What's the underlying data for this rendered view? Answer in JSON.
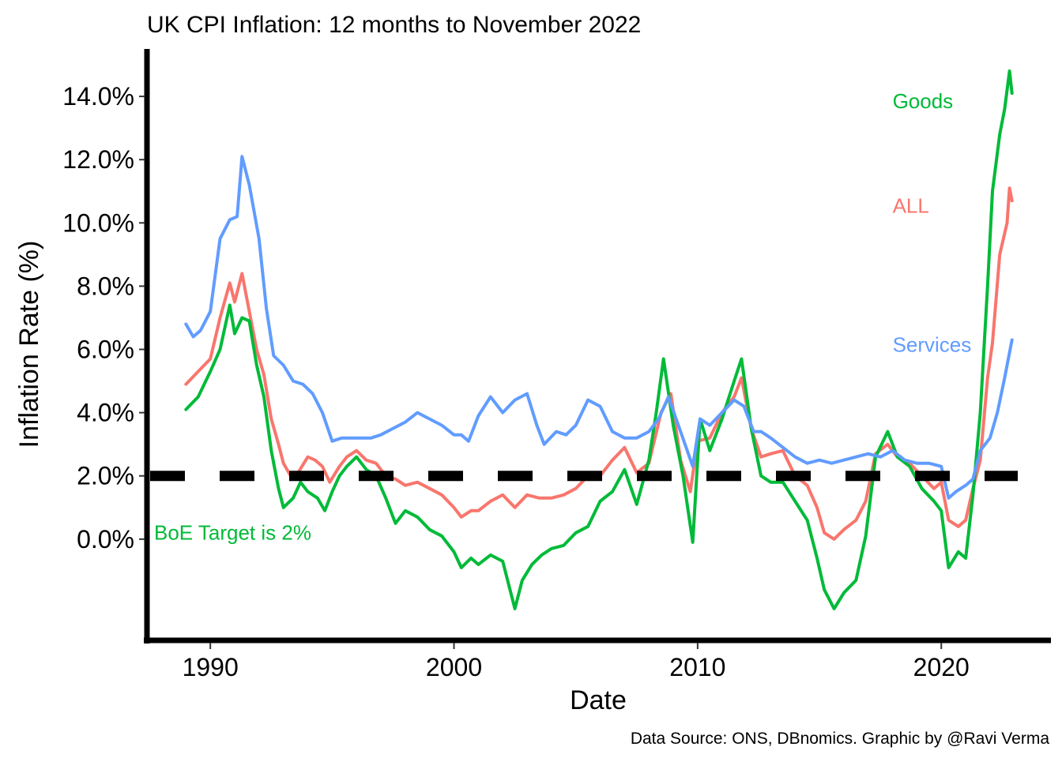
{
  "chart_data": {
    "type": "line",
    "title": "UK CPI Inflation: 12 months to November 2022",
    "xlabel": "Date",
    "ylabel": "Inflation Rate (%)",
    "caption": "Data Source: ONS, DBnomics. Graphic by @Ravi Verma",
    "x_range": [
      1987.4,
      2024.5
    ],
    "y_range": [
      -3.2,
      15.5
    ],
    "x_ticks": [
      {
        "value": 1990,
        "label": "1990"
      },
      {
        "value": 2000,
        "label": "2000"
      },
      {
        "value": 2010,
        "label": "2010"
      },
      {
        "value": 2020,
        "label": "2020"
      }
    ],
    "y_ticks": [
      {
        "value": 0,
        "label": "0.0%"
      },
      {
        "value": 2,
        "label": "2.0%"
      },
      {
        "value": 4,
        "label": "4.0%"
      },
      {
        "value": 6,
        "label": "6.0%"
      },
      {
        "value": 8,
        "label": "8.0%"
      },
      {
        "value": 10,
        "label": "10.0%"
      },
      {
        "value": 12,
        "label": "12.0%"
      },
      {
        "value": 14,
        "label": "14.0%"
      }
    ],
    "grid": false,
    "legend": "direct labels at right",
    "reference_line": {
      "y": 2,
      "style": "dashed",
      "color": "#000000",
      "label": "BoE Target is 2%",
      "label_color": "#00BA38"
    },
    "series": [
      {
        "name": "ALL",
        "color": "#F8766D",
        "points": [
          [
            1989.0,
            4.9
          ],
          [
            1989.5,
            5.3
          ],
          [
            1990.0,
            5.7
          ],
          [
            1990.4,
            7.0
          ],
          [
            1990.8,
            8.1
          ],
          [
            1991.0,
            7.5
          ],
          [
            1991.3,
            8.4
          ],
          [
            1991.6,
            7.2
          ],
          [
            1991.9,
            6.0
          ],
          [
            1992.2,
            5.2
          ],
          [
            1992.5,
            3.8
          ],
          [
            1992.8,
            3.0
          ],
          [
            1993.0,
            2.4
          ],
          [
            1993.3,
            2.0
          ],
          [
            1993.6,
            2.1
          ],
          [
            1994.0,
            2.6
          ],
          [
            1994.3,
            2.5
          ],
          [
            1994.6,
            2.3
          ],
          [
            1994.9,
            1.8
          ],
          [
            1995.3,
            2.3
          ],
          [
            1995.6,
            2.6
          ],
          [
            1996.0,
            2.8
          ],
          [
            1996.4,
            2.5
          ],
          [
            1996.8,
            2.4
          ],
          [
            1997.2,
            2.0
          ],
          [
            1997.6,
            1.9
          ],
          [
            1998.0,
            1.7
          ],
          [
            1998.5,
            1.8
          ],
          [
            1999.0,
            1.6
          ],
          [
            1999.5,
            1.4
          ],
          [
            2000.0,
            1.0
          ],
          [
            2000.3,
            0.7
          ],
          [
            2000.7,
            0.9
          ],
          [
            2001.0,
            0.9
          ],
          [
            2001.5,
            1.2
          ],
          [
            2002.0,
            1.4
          ],
          [
            2002.5,
            1.0
          ],
          [
            2003.0,
            1.4
          ],
          [
            2003.5,
            1.3
          ],
          [
            2004.0,
            1.3
          ],
          [
            2004.5,
            1.4
          ],
          [
            2005.0,
            1.6
          ],
          [
            2005.5,
            2.0
          ],
          [
            2006.0,
            2.0
          ],
          [
            2006.5,
            2.5
          ],
          [
            2007.0,
            2.9
          ],
          [
            2007.5,
            2.1
          ],
          [
            2008.0,
            2.4
          ],
          [
            2008.5,
            4.0
          ],
          [
            2008.9,
            4.6
          ],
          [
            2009.3,
            2.5
          ],
          [
            2009.7,
            1.5
          ],
          [
            2010.0,
            3.1
          ],
          [
            2010.5,
            3.2
          ],
          [
            2011.0,
            4.0
          ],
          [
            2011.5,
            4.5
          ],
          [
            2011.8,
            5.1
          ],
          [
            2012.2,
            3.5
          ],
          [
            2012.6,
            2.6
          ],
          [
            2013.0,
            2.7
          ],
          [
            2013.5,
            2.8
          ],
          [
            2014.0,
            2.0
          ],
          [
            2014.5,
            1.7
          ],
          [
            2014.9,
            1.0
          ],
          [
            2015.2,
            0.2
          ],
          [
            2015.6,
            0.0
          ],
          [
            2016.0,
            0.3
          ],
          [
            2016.5,
            0.6
          ],
          [
            2016.9,
            1.2
          ],
          [
            2017.3,
            2.7
          ],
          [
            2017.8,
            3.0
          ],
          [
            2018.2,
            2.6
          ],
          [
            2018.7,
            2.4
          ],
          [
            2019.2,
            2.0
          ],
          [
            2019.7,
            1.6
          ],
          [
            2020.0,
            1.8
          ],
          [
            2020.3,
            0.6
          ],
          [
            2020.7,
            0.4
          ],
          [
            2021.0,
            0.6
          ],
          [
            2021.3,
            1.6
          ],
          [
            2021.6,
            2.5
          ],
          [
            2021.9,
            5.1
          ],
          [
            2022.1,
            6.2
          ],
          [
            2022.4,
            9.0
          ],
          [
            2022.7,
            10.0
          ],
          [
            2022.8,
            11.1
          ],
          [
            2022.9,
            10.7
          ]
        ]
      },
      {
        "name": "Goods",
        "color": "#00BA38",
        "points": [
          [
            1989.0,
            4.1
          ],
          [
            1989.5,
            4.5
          ],
          [
            1990.0,
            5.3
          ],
          [
            1990.4,
            6.0
          ],
          [
            1990.8,
            7.4
          ],
          [
            1991.0,
            6.5
          ],
          [
            1991.3,
            7.0
          ],
          [
            1991.6,
            6.9
          ],
          [
            1991.9,
            5.5
          ],
          [
            1992.2,
            4.5
          ],
          [
            1992.5,
            2.8
          ],
          [
            1992.8,
            1.6
          ],
          [
            1993.0,
            1.0
          ],
          [
            1993.4,
            1.3
          ],
          [
            1993.7,
            1.8
          ],
          [
            1994.0,
            1.5
          ],
          [
            1994.4,
            1.3
          ],
          [
            1994.7,
            0.9
          ],
          [
            1995.0,
            1.5
          ],
          [
            1995.3,
            2.0
          ],
          [
            1995.6,
            2.3
          ],
          [
            1996.0,
            2.6
          ],
          [
            1996.4,
            2.2
          ],
          [
            1996.8,
            2.0
          ],
          [
            1997.2,
            1.3
          ],
          [
            1997.6,
            0.5
          ],
          [
            1998.0,
            0.9
          ],
          [
            1998.5,
            0.7
          ],
          [
            1999.0,
            0.3
          ],
          [
            1999.5,
            0.1
          ],
          [
            2000.0,
            -0.4
          ],
          [
            2000.3,
            -0.9
          ],
          [
            2000.7,
            -0.6
          ],
          [
            2001.0,
            -0.8
          ],
          [
            2001.5,
            -0.5
          ],
          [
            2002.0,
            -0.7
          ],
          [
            2002.5,
            -2.2
          ],
          [
            2002.8,
            -1.3
          ],
          [
            2003.2,
            -0.8
          ],
          [
            2003.6,
            -0.5
          ],
          [
            2004.0,
            -0.3
          ],
          [
            2004.5,
            -0.2
          ],
          [
            2005.0,
            0.2
          ],
          [
            2005.5,
            0.4
          ],
          [
            2006.0,
            1.2
          ],
          [
            2006.5,
            1.5
          ],
          [
            2007.0,
            2.2
          ],
          [
            2007.5,
            1.1
          ],
          [
            2008.0,
            2.5
          ],
          [
            2008.3,
            4.0
          ],
          [
            2008.6,
            5.7
          ],
          [
            2009.0,
            3.6
          ],
          [
            2009.4,
            2.0
          ],
          [
            2009.8,
            -0.1
          ],
          [
            2010.1,
            3.8
          ],
          [
            2010.5,
            2.8
          ],
          [
            2011.0,
            3.8
          ],
          [
            2011.5,
            5.0
          ],
          [
            2011.8,
            5.7
          ],
          [
            2012.2,
            3.5
          ],
          [
            2012.6,
            2.0
          ],
          [
            2013.0,
            1.8
          ],
          [
            2013.5,
            1.8
          ],
          [
            2014.0,
            1.2
          ],
          [
            2014.5,
            0.6
          ],
          [
            2014.9,
            -0.6
          ],
          [
            2015.2,
            -1.6
          ],
          [
            2015.6,
            -2.2
          ],
          [
            2016.0,
            -1.7
          ],
          [
            2016.5,
            -1.3
          ],
          [
            2016.9,
            0.1
          ],
          [
            2017.3,
            2.6
          ],
          [
            2017.8,
            3.4
          ],
          [
            2018.2,
            2.6
          ],
          [
            2018.7,
            2.3
          ],
          [
            2019.2,
            1.6
          ],
          [
            2019.7,
            1.2
          ],
          [
            2020.0,
            0.9
          ],
          [
            2020.3,
            -0.9
          ],
          [
            2020.7,
            -0.4
          ],
          [
            2021.0,
            -0.6
          ],
          [
            2021.3,
            1.4
          ],
          [
            2021.6,
            4.0
          ],
          [
            2021.9,
            8.0
          ],
          [
            2022.1,
            11.0
          ],
          [
            2022.4,
            12.8
          ],
          [
            2022.6,
            13.6
          ],
          [
            2022.8,
            14.8
          ],
          [
            2022.9,
            14.1
          ]
        ]
      },
      {
        "name": "Services",
        "color": "#619CFF",
        "points": [
          [
            1989.0,
            6.8
          ],
          [
            1989.3,
            6.4
          ],
          [
            1989.6,
            6.6
          ],
          [
            1990.0,
            7.2
          ],
          [
            1990.4,
            9.5
          ],
          [
            1990.8,
            10.1
          ],
          [
            1991.1,
            10.2
          ],
          [
            1991.3,
            12.1
          ],
          [
            1991.6,
            11.2
          ],
          [
            1992.0,
            9.5
          ],
          [
            1992.3,
            7.3
          ],
          [
            1992.6,
            5.8
          ],
          [
            1993.0,
            5.5
          ],
          [
            1993.4,
            5.0
          ],
          [
            1993.8,
            4.9
          ],
          [
            1994.2,
            4.6
          ],
          [
            1994.6,
            4.0
          ],
          [
            1995.0,
            3.1
          ],
          [
            1995.4,
            3.2
          ],
          [
            1995.8,
            3.2
          ],
          [
            1996.2,
            3.2
          ],
          [
            1996.6,
            3.2
          ],
          [
            1997.0,
            3.3
          ],
          [
            1997.5,
            3.5
          ],
          [
            1998.0,
            3.7
          ],
          [
            1998.5,
            4.0
          ],
          [
            1999.0,
            3.8
          ],
          [
            1999.5,
            3.6
          ],
          [
            2000.0,
            3.3
          ],
          [
            2000.3,
            3.3
          ],
          [
            2000.6,
            3.1
          ],
          [
            2001.0,
            3.9
          ],
          [
            2001.5,
            4.5
          ],
          [
            2002.0,
            4.0
          ],
          [
            2002.5,
            4.4
          ],
          [
            2003.0,
            4.6
          ],
          [
            2003.4,
            3.6
          ],
          [
            2003.7,
            3.0
          ],
          [
            2004.2,
            3.4
          ],
          [
            2004.6,
            3.3
          ],
          [
            2005.0,
            3.6
          ],
          [
            2005.5,
            4.4
          ],
          [
            2006.0,
            4.2
          ],
          [
            2006.5,
            3.4
          ],
          [
            2007.0,
            3.2
          ],
          [
            2007.5,
            3.2
          ],
          [
            2008.0,
            3.4
          ],
          [
            2008.4,
            3.8
          ],
          [
            2008.8,
            4.5
          ],
          [
            2009.3,
            3.4
          ],
          [
            2009.8,
            2.3
          ],
          [
            2010.1,
            3.8
          ],
          [
            2010.5,
            3.6
          ],
          [
            2011.0,
            4.0
          ],
          [
            2011.5,
            4.4
          ],
          [
            2011.9,
            4.2
          ],
          [
            2012.3,
            3.4
          ],
          [
            2012.6,
            3.4
          ],
          [
            2013.0,
            3.2
          ],
          [
            2013.5,
            2.9
          ],
          [
            2014.0,
            2.6
          ],
          [
            2014.5,
            2.4
          ],
          [
            2015.0,
            2.5
          ],
          [
            2015.5,
            2.4
          ],
          [
            2016.0,
            2.5
          ],
          [
            2016.5,
            2.6
          ],
          [
            2017.0,
            2.7
          ],
          [
            2017.5,
            2.6
          ],
          [
            2018.0,
            2.8
          ],
          [
            2018.5,
            2.5
          ],
          [
            2019.0,
            2.4
          ],
          [
            2019.5,
            2.4
          ],
          [
            2020.0,
            2.3
          ],
          [
            2020.3,
            1.3
          ],
          [
            2020.6,
            1.5
          ],
          [
            2021.0,
            1.7
          ],
          [
            2021.3,
            1.9
          ],
          [
            2021.6,
            2.8
          ],
          [
            2022.0,
            3.2
          ],
          [
            2022.3,
            4.0
          ],
          [
            2022.6,
            5.1
          ],
          [
            2022.9,
            6.3
          ]
        ]
      }
    ],
    "series_labels": [
      {
        "name": "Goods",
        "color": "#00BA38",
        "x": 2018.0,
        "y": 13.85
      },
      {
        "name": "ALL",
        "color": "#F8766D",
        "x": 2018.0,
        "y": 10.55
      },
      {
        "name": "Services",
        "color": "#619CFF",
        "x": 2018.0,
        "y": 6.15
      }
    ]
  }
}
